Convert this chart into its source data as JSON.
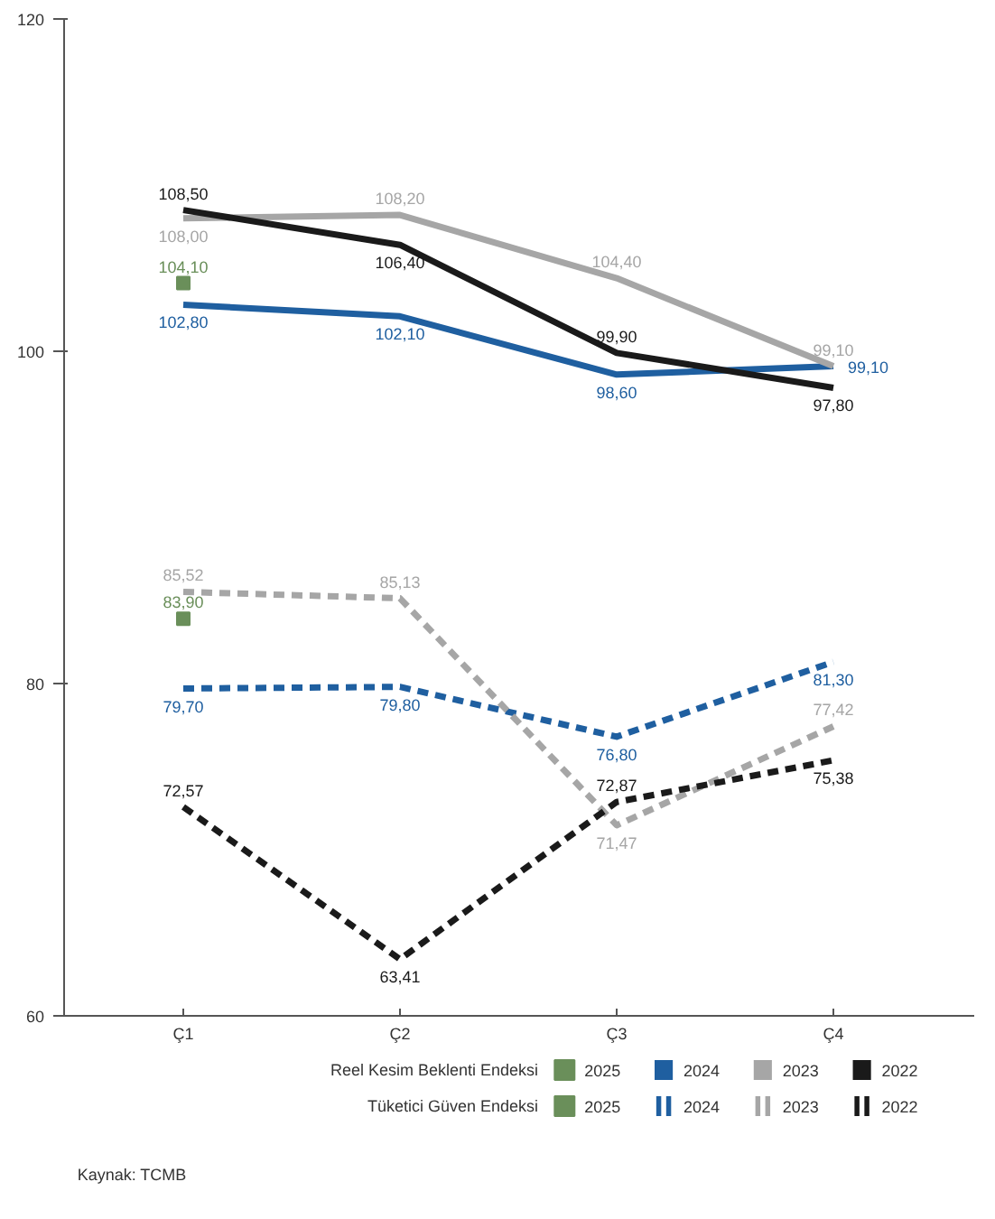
{
  "chart_data": {
    "type": "line",
    "categories": [
      "Ç1",
      "Ç2",
      "Ç3",
      "Ç4"
    ],
    "ylim": [
      60,
      120
    ],
    "yticks": [
      60,
      80,
      100,
      120
    ],
    "grid": false,
    "legend": "bottom",
    "marker": "none",
    "annotations": [
      "Reel Kesim Beklenti Endeksi",
      "Tüketici Güven Endeksi",
      "Kaynak: TCMB"
    ],
    "series": [
      {
        "name": "2025",
        "color": "#6a8f5a",
        "line_style": "solid",
        "marker": "square",
        "values": [
          104.1,
          null,
          null,
          null
        ],
        "value_labels": [
          "104,10",
          null,
          null,
          null
        ]
      },
      {
        "name": "2024",
        "color": "#1f5fa0",
        "line_style": "solid",
        "values": [
          102.8,
          102.1,
          98.6,
          99.1
        ],
        "value_labels": [
          "102,80",
          "102,10",
          "98,60",
          "99,10"
        ]
      },
      {
        "name": "2023",
        "color": "#a6a6a6",
        "line_style": "solid",
        "values": [
          108.0,
          108.2,
          104.4,
          99.1
        ],
        "value_labels": [
          "108,00",
          "108,20",
          "104,40",
          "99,10"
        ]
      },
      {
        "name": "2022",
        "color": "#1a1a1a",
        "line_style": "solid",
        "values": [
          108.5,
          106.4,
          99.9,
          97.8
        ],
        "value_labels": [
          "108,50",
          "106,40",
          "99,90",
          "97,80"
        ]
      },
      {
        "name": "2025",
        "color": "#6a8f5a",
        "line_style": "dashed",
        "marker": "square",
        "values": [
          83.9,
          null,
          null,
          null
        ],
        "value_labels": [
          "83,90",
          null,
          null,
          null
        ]
      },
      {
        "name": "2024",
        "color": "#1f5fa0",
        "line_style": "dashed",
        "values": [
          79.7,
          79.8,
          76.8,
          81.3
        ],
        "value_labels": [
          "79,70",
          "79,80",
          "76,80",
          "81,30"
        ]
      },
      {
        "name": "2023",
        "color": "#a6a6a6",
        "line_style": "dashed",
        "values": [
          85.52,
          85.13,
          71.47,
          77.42
        ],
        "value_labels": [
          "85,52",
          "85,13",
          "71,47",
          "77,42"
        ]
      },
      {
        "name": "2022",
        "color": "#1a1a1a",
        "line_style": "dashed",
        "values": [
          72.57,
          63.41,
          72.87,
          75.38
        ],
        "value_labels": [
          "72,57",
          "63,41",
          "72,87",
          "75,38"
        ]
      }
    ]
  }
}
